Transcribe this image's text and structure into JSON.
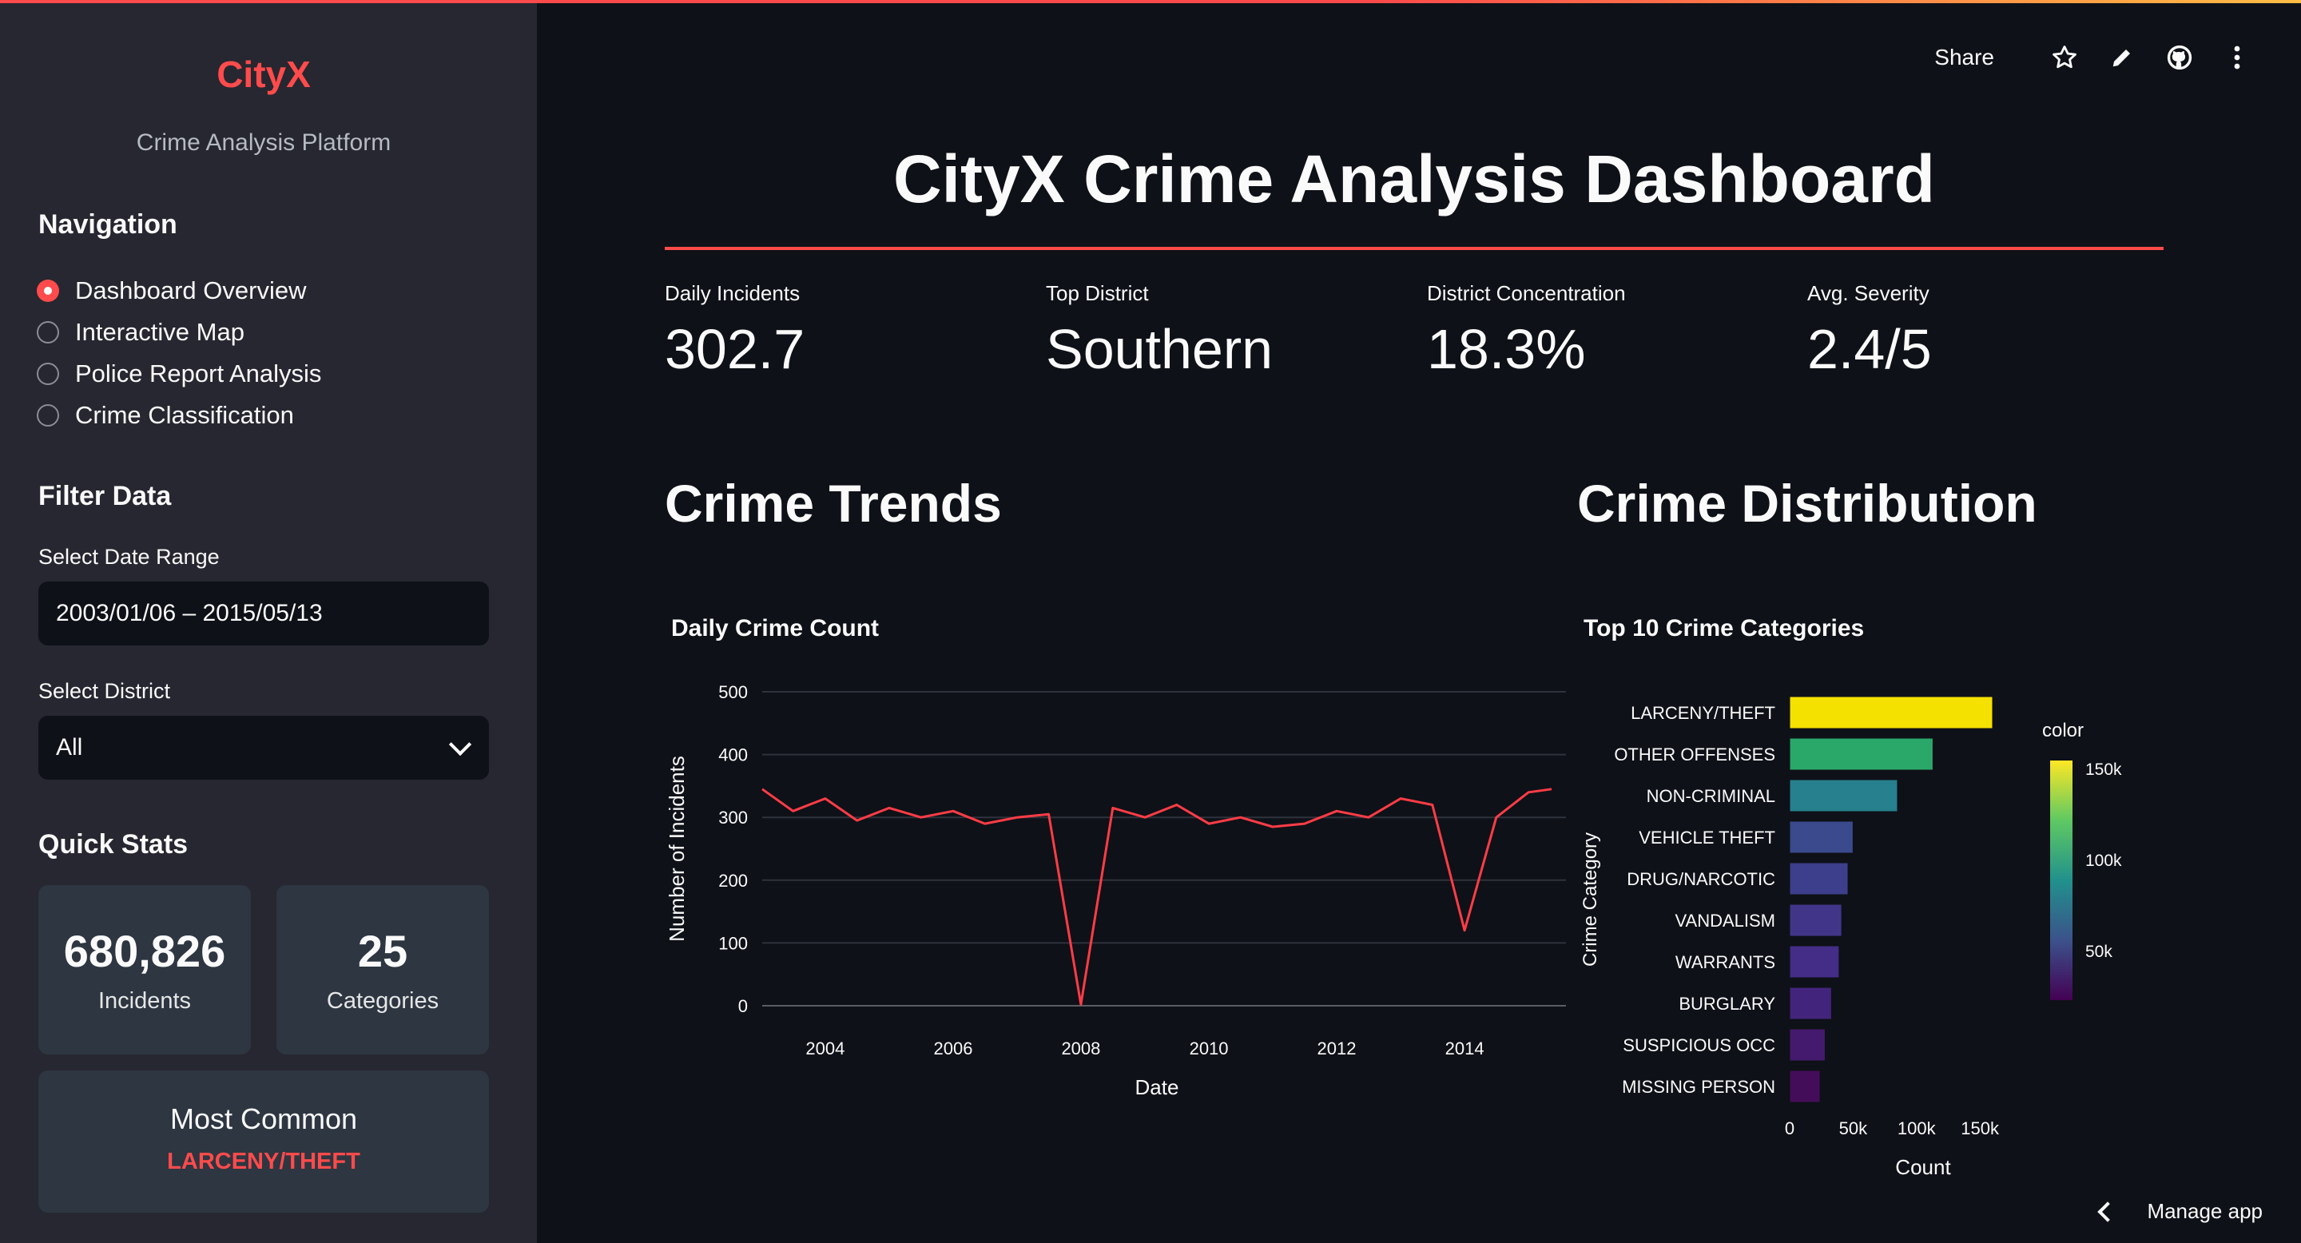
{
  "sidebar": {
    "brand": "CityX",
    "subtitle": "Crime Analysis Platform",
    "nav_heading": "Navigation",
    "nav_items": [
      {
        "label": "Dashboard Overview",
        "selected": true
      },
      {
        "label": "Interactive Map",
        "selected": false
      },
      {
        "label": "Police Report Analysis",
        "selected": false
      },
      {
        "label": "Crime Classification",
        "selected": false
      }
    ],
    "filter_heading": "Filter Data",
    "date_label": "Select Date Range",
    "date_value": "2003/01/06 – 2015/05/13",
    "district_label": "Select District",
    "district_value": "All",
    "quick_stats_heading": "Quick Stats",
    "stats": [
      {
        "value": "680,826",
        "label": "Incidents"
      },
      {
        "value": "25",
        "label": "Categories"
      }
    ],
    "most_common_label": "Most Common",
    "most_common_value": "LARCENY/THEFT"
  },
  "toolbar": {
    "share_label": "Share"
  },
  "main": {
    "title": "CityX Crime Analysis Dashboard",
    "metrics": [
      {
        "label": "Daily Incidents",
        "value": "302.7"
      },
      {
        "label": "Top District",
        "value": "Southern"
      },
      {
        "label": "District Concentration",
        "value": "18.3%"
      },
      {
        "label": "Avg. Severity",
        "value": "2.4/5"
      }
    ],
    "trends_heading": "Crime Trends",
    "distribution_heading": "Crime Distribution"
  },
  "manage_label": "Manage app",
  "colors": {
    "accent": "#ff4b4b",
    "line": "#ff3c46",
    "background": "#0e1117",
    "sidebar": "#262730"
  },
  "chart_data": [
    {
      "type": "line",
      "title": "Daily Crime Count",
      "xlabel": "Date",
      "ylabel": "Number of Incidents",
      "ylim": [
        0,
        500
      ],
      "yticks": [
        "0",
        "100",
        "200",
        "300",
        "400",
        "500"
      ],
      "xticks": [
        "2004",
        "2006",
        "2008",
        "2010",
        "2012",
        "2014"
      ],
      "x_range": [
        "2003-01-06",
        "2015-05-13"
      ],
      "series": [
        {
          "values": [
            {
              "x": "2003-01-06",
              "y": 345
            },
            {
              "x": "2003-07-01",
              "y": 310
            },
            {
              "x": "2004-01-01",
              "y": 330
            },
            {
              "x": "2004-07-01",
              "y": 295
            },
            {
              "x": "2005-01-01",
              "y": 315
            },
            {
              "x": "2005-07-01",
              "y": 300
            },
            {
              "x": "2006-01-01",
              "y": 310
            },
            {
              "x": "2006-07-01",
              "y": 290
            },
            {
              "x": "2007-01-01",
              "y": 300
            },
            {
              "x": "2007-07-01",
              "y": 305
            },
            {
              "x": "2008-01-01",
              "y": 2
            },
            {
              "x": "2008-07-01",
              "y": 315
            },
            {
              "x": "2009-01-01",
              "y": 300
            },
            {
              "x": "2009-07-01",
              "y": 320
            },
            {
              "x": "2010-01-01",
              "y": 290
            },
            {
              "x": "2010-07-01",
              "y": 300
            },
            {
              "x": "2011-01-01",
              "y": 285
            },
            {
              "x": "2011-07-01",
              "y": 290
            },
            {
              "x": "2012-01-01",
              "y": 310
            },
            {
              "x": "2012-07-01",
              "y": 300
            },
            {
              "x": "2013-01-01",
              "y": 330
            },
            {
              "x": "2013-07-01",
              "y": 320
            },
            {
              "x": "2014-01-01",
              "y": 120
            },
            {
              "x": "2014-07-01",
              "y": 300
            },
            {
              "x": "2015-01-01",
              "y": 340
            },
            {
              "x": "2015-05-13",
              "y": 345
            }
          ]
        }
      ]
    },
    {
      "type": "bar",
      "orientation": "horizontal",
      "title": "Top 10 Crime Categories",
      "xlabel": "Count",
      "ylabel": "Crime Category",
      "xticks": [
        "0",
        "50k",
        "100k",
        "150k"
      ],
      "xlim": [
        0,
        160000
      ],
      "categories": [
        "LARCENY/THEFT",
        "OTHER OFFENSES",
        "NON-CRIMINAL",
        "VEHICLE THEFT",
        "DRUG/NARCOTIC",
        "VANDALISM",
        "WARRANTS",
        "BURGLARY",
        "SUSPICIOUS OCC",
        "MISSING PERSON"
      ],
      "values": [
        160000,
        113000,
        85000,
        50000,
        46000,
        41000,
        39000,
        33000,
        28000,
        24000
      ],
      "colors": [
        "#f5e100",
        "#2aa86a",
        "#26808e",
        "#3a4a8c",
        "#3d3f8c",
        "#41358a",
        "#432d87",
        "#43247c",
        "#441a6e",
        "#440d59"
      ],
      "colorbar": {
        "title": "color",
        "ticks": [
          "150k",
          "100k",
          "50k"
        ]
      }
    }
  ]
}
